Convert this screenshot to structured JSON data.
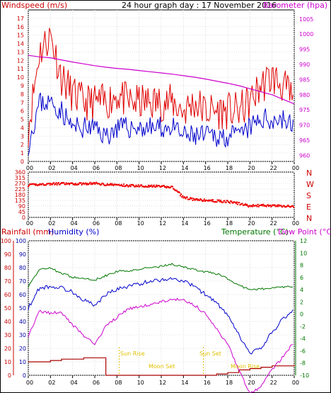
{
  "top": {
    "left_title": "Windspeed (m/s)",
    "center_title": "24 hour graph day : 17 November 2016",
    "right_title": "Barometer (hpa)"
  },
  "direction": {
    "letters": [
      "N",
      "W",
      "S",
      "E",
      "N"
    ]
  },
  "bottom": {
    "rain_title": "Rainfall (mm)",
    "humidity_title": "Humidity (%)",
    "temp_title": "Temperature (°C)",
    "dew_title": "Dew Point (°C)",
    "annotations": {
      "sun_rise": "Sun Rise",
      "moon_set": "Moon Set",
      "sun_set": "Sun Set",
      "moon_rise": "Moon Rise"
    }
  },
  "time_ticks": [
    "00",
    "02",
    "04",
    "06",
    "08",
    "10",
    "12",
    "14",
    "16",
    "18",
    "20",
    "22",
    "00"
  ],
  "colors": {
    "wind_gust": "#e00000",
    "wind_avg": "#0000cc",
    "barometer": "#cc00cc",
    "direction": "#ee0000",
    "rain": "#aa0000",
    "humidity": "#0000cc",
    "temperature": "#007700",
    "dew_point": "#cc00cc",
    "annotation": "#e0c000",
    "left_axis": "#cc0000",
    "humidity_axis": "#0000aa",
    "temp_axis": "#007700"
  },
  "chart_data": [
    {
      "type": "line",
      "x": [
        0,
        1,
        2,
        3,
        4,
        5,
        6,
        7,
        8,
        9,
        10,
        11,
        12,
        13,
        14,
        15,
        16,
        17,
        18,
        19,
        20,
        21,
        22,
        23,
        24
      ],
      "x_tick_labels": [
        "00",
        "02",
        "04",
        "06",
        "08",
        "10",
        "12",
        "14",
        "16",
        "18",
        "20",
        "22",
        "00"
      ],
      "ylim": [
        0,
        18
      ],
      "y_ticks": [
        0,
        1,
        2,
        3,
        4,
        5,
        6,
        7,
        8,
        9,
        10,
        11,
        12,
        13,
        14,
        15,
        16,
        17
      ],
      "y2lim": [
        958,
        1008
      ],
      "y2_ticks": [
        960,
        965,
        970,
        975,
        980,
        985,
        990,
        995,
        1000,
        1005
      ],
      "series": [
        {
          "name": "Windspeed (m/s)",
          "values": [
            4,
            13,
            15,
            10,
            8,
            7,
            7,
            7,
            8,
            7,
            7,
            7,
            7,
            7,
            6,
            7,
            6,
            6,
            6,
            6,
            7,
            9,
            10,
            9,
            7
          ]
        },
        {
          "values": [
            2,
            7,
            7,
            6,
            4,
            4,
            4,
            3,
            4,
            4,
            4,
            4,
            4,
            4,
            3,
            3,
            3,
            3,
            3,
            3,
            4,
            5,
            5,
            5,
            4
          ]
        },
        {
          "name": "Barometer (hpa)",
          "axis": "right",
          "values": [
            993,
            992.5,
            992.2,
            991.5,
            990.8,
            990.2,
            989.6,
            989.1,
            988.7,
            988.4,
            988,
            987.6,
            987.2,
            986.8,
            986.3,
            985.8,
            985.2,
            984.5,
            983.8,
            983,
            982,
            981,
            980,
            978.5,
            977
          ]
        }
      ]
    },
    {
      "type": "scatter",
      "x": [
        0,
        1,
        2,
        3,
        4,
        5,
        6,
        7,
        8,
        9,
        10,
        11,
        12,
        13,
        14,
        15,
        16,
        17,
        18,
        19,
        20,
        21,
        22,
        23,
        24
      ],
      "ylim": [
        0,
        360
      ],
      "y_ticks": [
        0,
        45,
        90,
        135,
        180,
        225,
        270,
        315,
        360
      ],
      "series": [
        {
          "values": [
            255,
            262,
            265,
            268,
            265,
            268,
            270,
            262,
            258,
            252,
            252,
            248,
            245,
            240,
            160,
            140,
            135,
            130,
            125,
            110,
            90,
            95,
            92,
            90,
            88
          ]
        }
      ]
    },
    {
      "type": "line",
      "x": [
        0,
        1,
        2,
        3,
        4,
        5,
        6,
        7,
        8,
        9,
        10,
        11,
        12,
        13,
        14,
        15,
        16,
        17,
        18,
        19,
        20,
        21,
        22,
        23,
        24
      ],
      "ylim": [
        0,
        100
      ],
      "y_ticks": [
        0,
        10,
        20,
        30,
        40,
        50,
        60,
        70,
        80,
        90,
        100
      ],
      "y2lim": [
        -10,
        12
      ],
      "y2_ticks": [
        -10,
        -8,
        -6,
        -4,
        -2,
        0,
        2,
        4,
        6,
        8,
        10,
        12
      ],
      "series": [
        {
          "name": "Rainfall (mm)",
          "values": [
            10,
            10,
            11,
            12,
            12,
            13,
            13,
            0,
            0,
            0,
            0,
            0,
            0,
            0,
            0,
            0,
            0,
            1,
            2,
            4,
            5,
            6,
            7,
            7,
            8
          ]
        },
        {
          "name": "Humidity (%)",
          "values": [
            50,
            65,
            66,
            65,
            62,
            56,
            52,
            60,
            64,
            66,
            68,
            70,
            71,
            72,
            70,
            66,
            60,
            54,
            44,
            30,
            16,
            20,
            32,
            42,
            49
          ]
        },
        {
          "name": "Temperature (°C)",
          "axis": "right",
          "values": [
            4.5,
            7.3,
            7.5,
            6.7,
            6.0,
            5.8,
            5.6,
            6.3,
            7.0,
            7.1,
            7.4,
            7.6,
            7.8,
            8.2,
            7.7,
            7.3,
            6.9,
            6.6,
            5.8,
            4.7,
            4.0,
            4.1,
            4.3,
            4.4,
            4.5
          ]
        },
        {
          "name": "Dew Point (°C)",
          "axis": "right",
          "values": [
            -3.5,
            0.5,
            0.2,
            0.2,
            -1.8,
            -3.5,
            -5.0,
            -2.0,
            -0.5,
            0.8,
            1.2,
            1.5,
            2.0,
            2.5,
            2.3,
            1.5,
            0,
            -2.5,
            -5.0,
            -9.0,
            -13,
            -12,
            -9.0,
            -7.0,
            -4.5
          ]
        }
      ]
    }
  ]
}
